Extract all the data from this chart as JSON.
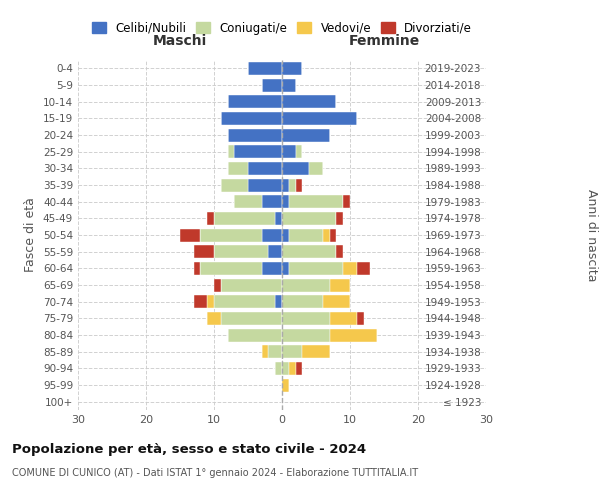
{
  "age_groups": [
    "100+",
    "95-99",
    "90-94",
    "85-89",
    "80-84",
    "75-79",
    "70-74",
    "65-69",
    "60-64",
    "55-59",
    "50-54",
    "45-49",
    "40-44",
    "35-39",
    "30-34",
    "25-29",
    "20-24",
    "15-19",
    "10-14",
    "5-9",
    "0-4"
  ],
  "birth_years": [
    "≤ 1923",
    "1924-1928",
    "1929-1933",
    "1934-1938",
    "1939-1943",
    "1944-1948",
    "1949-1953",
    "1954-1958",
    "1959-1963",
    "1964-1968",
    "1969-1973",
    "1974-1978",
    "1979-1983",
    "1984-1988",
    "1989-1993",
    "1994-1998",
    "1999-2003",
    "2004-2008",
    "2009-2013",
    "2014-2018",
    "2019-2023"
  ],
  "males": {
    "celibi": [
      0,
      0,
      0,
      0,
      0,
      0,
      1,
      0,
      3,
      2,
      3,
      1,
      3,
      5,
      5,
      7,
      8,
      9,
      8,
      3,
      5
    ],
    "coniugati": [
      0,
      0,
      1,
      2,
      8,
      9,
      9,
      9,
      9,
      8,
      9,
      9,
      4,
      4,
      3,
      1,
      0,
      0,
      0,
      0,
      0
    ],
    "vedovi": [
      0,
      0,
      0,
      1,
      0,
      2,
      1,
      0,
      0,
      0,
      0,
      0,
      0,
      0,
      0,
      0,
      0,
      0,
      0,
      0,
      0
    ],
    "divorziati": [
      0,
      0,
      0,
      0,
      0,
      0,
      2,
      1,
      1,
      3,
      3,
      1,
      0,
      0,
      0,
      0,
      0,
      0,
      0,
      0,
      0
    ]
  },
  "females": {
    "nubili": [
      0,
      0,
      0,
      0,
      0,
      0,
      0,
      0,
      1,
      0,
      1,
      0,
      1,
      1,
      4,
      2,
      7,
      11,
      8,
      2,
      3
    ],
    "coniugate": [
      0,
      0,
      1,
      3,
      7,
      7,
      6,
      7,
      8,
      8,
      5,
      8,
      8,
      1,
      2,
      1,
      0,
      0,
      0,
      0,
      0
    ],
    "vedove": [
      0,
      1,
      1,
      4,
      7,
      4,
      4,
      3,
      2,
      0,
      1,
      0,
      0,
      0,
      0,
      0,
      0,
      0,
      0,
      0,
      0
    ],
    "divorziate": [
      0,
      0,
      1,
      0,
      0,
      1,
      0,
      0,
      2,
      1,
      1,
      1,
      1,
      1,
      0,
      0,
      0,
      0,
      0,
      0,
      0
    ]
  },
  "colors": {
    "celibi": "#4472c4",
    "coniugati": "#c5d9a0",
    "vedovi": "#f5c84c",
    "divorziati": "#c0392b"
  },
  "xlim": 30,
  "title": "Popolazione per età, sesso e stato civile - 2024",
  "subtitle": "COMUNE DI CUNICO (AT) - Dati ISTAT 1° gennaio 2024 - Elaborazione TUTTITALIA.IT",
  "ylabel_left": "Fasce di età",
  "ylabel_right": "Anni di nascita",
  "xlabel_maschi": "Maschi",
  "xlabel_femmine": "Femmine",
  "legend_labels": [
    "Celibi/Nubili",
    "Coniugati/e",
    "Vedovi/e",
    "Divorziati/e"
  ],
  "background_color": "#ffffff",
  "grid_color": "#cccccc"
}
